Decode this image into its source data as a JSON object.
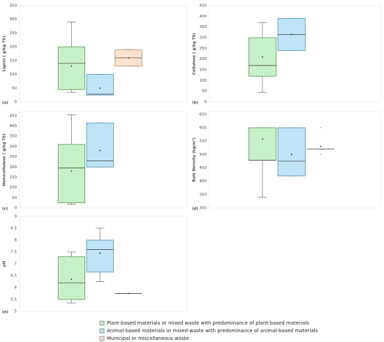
{
  "legend": [
    {
      "name": "Plant-based materials or mixed waste with predominance of plant-based materials",
      "color": "#c8f0c8"
    },
    {
      "name": "Animal-based materials or mixed waste with predominance of animal-based materials",
      "color": "#bfe4f6"
    },
    {
      "name": "Municipal or miscellaneous waste",
      "color": "#fde2d2"
    }
  ],
  "chart_data": [
    {
      "type": "box",
      "panel_label": "(a)",
      "y_label": "Lignin ( g/kg TS)",
      "ylim": [
        0,
        350
      ],
      "yticks": [
        0,
        50,
        100,
        150,
        200,
        250,
        300,
        350
      ],
      "series": [
        {
          "whislo": 35,
          "q1": 45,
          "median": 140,
          "q3": 200,
          "whishi": 290,
          "mean": 130
        },
        {
          "whislo": 25,
          "q1": 25,
          "median": 28,
          "q3": 100,
          "whishi": 100,
          "mean": 50
        },
        {
          "whislo": 130,
          "q1": 130,
          "median": 160,
          "q3": 190,
          "whishi": 190,
          "mean": 160
        }
      ]
    },
    {
      "type": "box",
      "panel_label": "(b)",
      "y_label": "Cellulose ( g/kg TS)",
      "ylim": [
        0,
        450
      ],
      "yticks": [
        0,
        50,
        100,
        150,
        200,
        250,
        300,
        350,
        400,
        450
      ],
      "series": [
        {
          "whislo": 45,
          "q1": 120,
          "median": 170,
          "q3": 300,
          "whishi": 370,
          "mean": 210
        },
        {
          "whislo": 240,
          "q1": 240,
          "median": 315,
          "q3": 390,
          "whishi": 390,
          "mean": 315
        },
        null
      ]
    },
    {
      "type": "box",
      "panel_label": "(c)",
      "y_label": "Hemicellulose ( g/kg TS)",
      "ylim": [
        0,
        470
      ],
      "yticks": [
        0,
        50,
        100,
        150,
        200,
        250,
        300,
        350,
        400,
        450
      ],
      "series": [
        {
          "whislo": 18,
          "q1": 25,
          "median": 195,
          "q3": 310,
          "whishi": 455,
          "mean": 180
        },
        {
          "whislo": 200,
          "q1": 200,
          "median": 230,
          "q3": 415,
          "whishi": 415,
          "mean": 280
        },
        null
      ]
    },
    {
      "type": "box",
      "panel_label": "(d)",
      "y_label": "Bulk Density (kg/m³)",
      "ylim": [
        300,
        660
      ],
      "yticks": [
        300,
        350,
        400,
        450,
        500,
        550,
        600,
        650
      ],
      "series": [
        {
          "whislo": 340,
          "q1": 478,
          "median": 478,
          "q3": 600,
          "whishi": 600,
          "mean": 558
        },
        {
          "whislo": 420,
          "q1": 420,
          "median": 475,
          "q3": 600,
          "whishi": 600,
          "mean": 500
        },
        {
          "whislo": 520,
          "q1": 520,
          "median": 520,
          "q3": 520,
          "whishi": 520,
          "mean": 530,
          "outliers": [
            600,
            500
          ]
        }
      ]
    },
    {
      "type": "box",
      "panel_label": "(e)",
      "y_label": "pH",
      "ylim": [
        5,
        9
      ],
      "yticks": [
        5,
        5.5,
        6,
        6.5,
        7,
        7.5,
        8,
        8.5,
        9
      ],
      "series": [
        {
          "whislo": 5.35,
          "q1": 5.5,
          "median": 6.2,
          "q3": 7.3,
          "whishi": 7.5,
          "mean": 6.35
        },
        {
          "whislo": 6.25,
          "q1": 6.65,
          "median": 7.6,
          "q3": 8.0,
          "whishi": 8.5,
          "mean": 7.45
        },
        {
          "whislo": 5.75,
          "q1": 5.75,
          "median": 5.75,
          "q3": 5.75,
          "whishi": 5.75,
          "mean": 5.75
        }
      ]
    }
  ]
}
